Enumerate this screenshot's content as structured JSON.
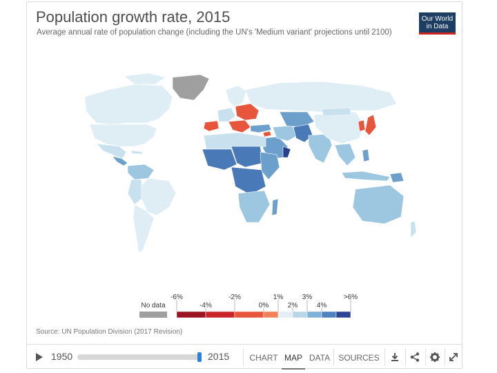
{
  "header": {
    "title": "Population growth rate, 2015",
    "subtitle": "Average annual rate of population change (including the UN's 'Medium variant' projections until 2100)",
    "logo_line1": "Our World",
    "logo_line2": "in Data"
  },
  "legend": {
    "no_data_label": "No data",
    "upper_ticks": [
      "-6%",
      "-2%",
      "1%",
      "3%",
      ">6%"
    ],
    "lower_ticks": [
      "-4%",
      "0%",
      "2%",
      "4%"
    ],
    "colors": [
      "#9b1421",
      "#c9262c",
      "#e6553c",
      "#f0815a",
      "#e4eef5",
      "#b8d6e8",
      "#7fb2d6",
      "#4f83bf",
      "#2d4593"
    ],
    "no_data_color": "#9f9f9f"
  },
  "map_colors": {
    "light": "#dfedf5",
    "pale": "#c9e1ef",
    "mid": "#9dc7e1",
    "blue": "#6c9fcc",
    "strong": "#4a79b7",
    "dark": "#2b3f8f",
    "orange": "#e6553c",
    "grey": "#9f9f9f"
  },
  "source": "Source: UN Population Division (2017 Revision)",
  "timeline": {
    "start_year": "1950",
    "end_year": "2015",
    "progress_fraction": 1.0
  },
  "tabs": [
    "CHART",
    "MAP",
    "DATA",
    "SOURCES"
  ],
  "active_tab": "MAP",
  "icons": [
    "download-icon",
    "share-icon",
    "settings-icon",
    "fullscreen-icon"
  ]
}
